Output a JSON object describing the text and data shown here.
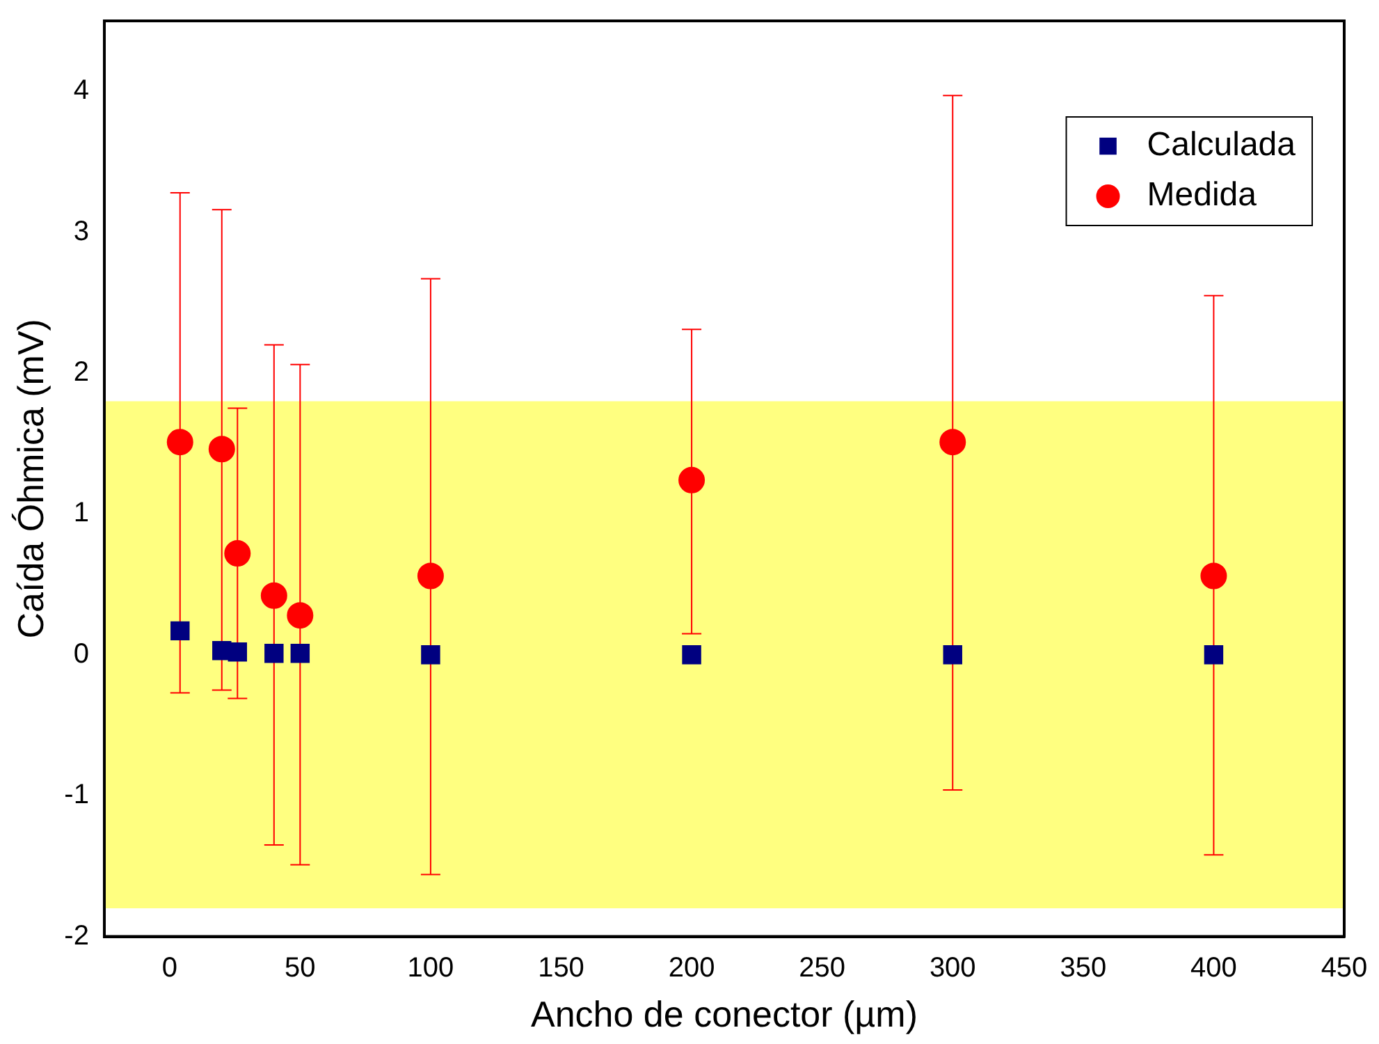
{
  "chart_data": {
    "type": "scatter",
    "xlabel": "Ancho de conector (µm)",
    "ylabel": "Caída Óhmica (mV)",
    "x": [
      4,
      20,
      26,
      40,
      50,
      100,
      200,
      300,
      400
    ],
    "series": [
      {
        "name": "Calculada",
        "color": "#000080",
        "marker": "square",
        "values": [
          0.17,
          0.03,
          0.02,
          0.01,
          0.01,
          0,
          0,
          0,
          0
        ]
      },
      {
        "name": "Medida",
        "color": "#ff0000",
        "marker": "circle",
        "values": [
          1.51,
          1.46,
          0.72,
          0.42,
          0.28,
          0.56,
          1.24,
          1.51,
          0.56
        ],
        "errors": [
          [
            -0.27,
            3.28
          ],
          [
            -0.25,
            3.16
          ],
          [
            -0.31,
            1.75
          ],
          [
            -1.35,
            2.2
          ],
          [
            -1.49,
            2.06
          ],
          [
            -1.56,
            2.67
          ],
          [
            0.15,
            2.31
          ],
          [
            -0.96,
            3.97
          ],
          [
            -1.42,
            2.55
          ]
        ]
      }
    ],
    "bands": [
      {
        "axis": "y",
        "from": -1.8,
        "to": 1.8,
        "color": "#ffff80"
      }
    ],
    "xlim": [
      -25,
      450
    ],
    "xticks": [
      0,
      50,
      100,
      150,
      200,
      250,
      300,
      350,
      400,
      450
    ],
    "ylim": [
      -2,
      4.5
    ],
    "yticks": [
      -2,
      -1,
      0,
      1,
      2,
      3,
      4
    ],
    "legend": "top right",
    "grid": false
  }
}
